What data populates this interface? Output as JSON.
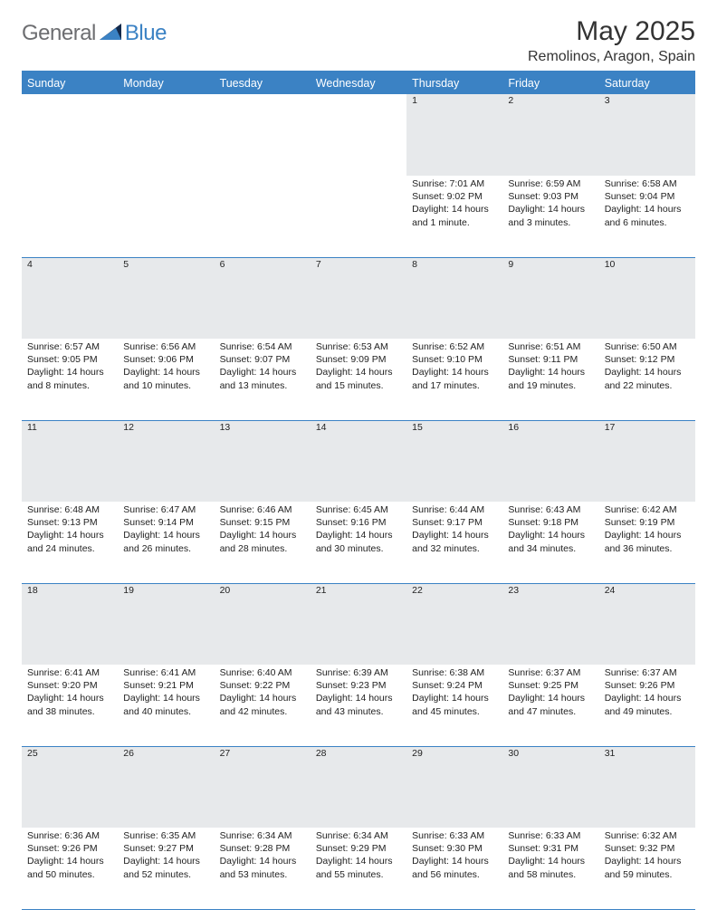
{
  "logo": {
    "general": "General",
    "blue": "Blue"
  },
  "title": "May 2025",
  "location": "Remolinos, Aragon, Spain",
  "colors": {
    "header_bg": "#3b82c4",
    "header_text": "#ffffff",
    "daynum_bg": "#e7e9eb",
    "border": "#3b82c4",
    "logo_gray": "#6d6e71",
    "logo_blue": "#3b82c4",
    "text": "#222222"
  },
  "fonts": {
    "body_family": "Arial",
    "title_size_pt": 30,
    "location_size_pt": 16,
    "header_size_pt": 12.5,
    "cell_size_pt": 10.5
  },
  "days_of_week": [
    "Sunday",
    "Monday",
    "Tuesday",
    "Wednesday",
    "Thursday",
    "Friday",
    "Saturday"
  ],
  "weeks": [
    [
      null,
      null,
      null,
      null,
      {
        "n": "1",
        "sr": "7:01 AM",
        "ss": "9:02 PM",
        "dl": "14 hours and 1 minute."
      },
      {
        "n": "2",
        "sr": "6:59 AM",
        "ss": "9:03 PM",
        "dl": "14 hours and 3 minutes."
      },
      {
        "n": "3",
        "sr": "6:58 AM",
        "ss": "9:04 PM",
        "dl": "14 hours and 6 minutes."
      }
    ],
    [
      {
        "n": "4",
        "sr": "6:57 AM",
        "ss": "9:05 PM",
        "dl": "14 hours and 8 minutes."
      },
      {
        "n": "5",
        "sr": "6:56 AM",
        "ss": "9:06 PM",
        "dl": "14 hours and 10 minutes."
      },
      {
        "n": "6",
        "sr": "6:54 AM",
        "ss": "9:07 PM",
        "dl": "14 hours and 13 minutes."
      },
      {
        "n": "7",
        "sr": "6:53 AM",
        "ss": "9:09 PM",
        "dl": "14 hours and 15 minutes."
      },
      {
        "n": "8",
        "sr": "6:52 AM",
        "ss": "9:10 PM",
        "dl": "14 hours and 17 minutes."
      },
      {
        "n": "9",
        "sr": "6:51 AM",
        "ss": "9:11 PM",
        "dl": "14 hours and 19 minutes."
      },
      {
        "n": "10",
        "sr": "6:50 AM",
        "ss": "9:12 PM",
        "dl": "14 hours and 22 minutes."
      }
    ],
    [
      {
        "n": "11",
        "sr": "6:48 AM",
        "ss": "9:13 PM",
        "dl": "14 hours and 24 minutes."
      },
      {
        "n": "12",
        "sr": "6:47 AM",
        "ss": "9:14 PM",
        "dl": "14 hours and 26 minutes."
      },
      {
        "n": "13",
        "sr": "6:46 AM",
        "ss": "9:15 PM",
        "dl": "14 hours and 28 minutes."
      },
      {
        "n": "14",
        "sr": "6:45 AM",
        "ss": "9:16 PM",
        "dl": "14 hours and 30 minutes."
      },
      {
        "n": "15",
        "sr": "6:44 AM",
        "ss": "9:17 PM",
        "dl": "14 hours and 32 minutes."
      },
      {
        "n": "16",
        "sr": "6:43 AM",
        "ss": "9:18 PM",
        "dl": "14 hours and 34 minutes."
      },
      {
        "n": "17",
        "sr": "6:42 AM",
        "ss": "9:19 PM",
        "dl": "14 hours and 36 minutes."
      }
    ],
    [
      {
        "n": "18",
        "sr": "6:41 AM",
        "ss": "9:20 PM",
        "dl": "14 hours and 38 minutes."
      },
      {
        "n": "19",
        "sr": "6:41 AM",
        "ss": "9:21 PM",
        "dl": "14 hours and 40 minutes."
      },
      {
        "n": "20",
        "sr": "6:40 AM",
        "ss": "9:22 PM",
        "dl": "14 hours and 42 minutes."
      },
      {
        "n": "21",
        "sr": "6:39 AM",
        "ss": "9:23 PM",
        "dl": "14 hours and 43 minutes."
      },
      {
        "n": "22",
        "sr": "6:38 AM",
        "ss": "9:24 PM",
        "dl": "14 hours and 45 minutes."
      },
      {
        "n": "23",
        "sr": "6:37 AM",
        "ss": "9:25 PM",
        "dl": "14 hours and 47 minutes."
      },
      {
        "n": "24",
        "sr": "6:37 AM",
        "ss": "9:26 PM",
        "dl": "14 hours and 49 minutes."
      }
    ],
    [
      {
        "n": "25",
        "sr": "6:36 AM",
        "ss": "9:26 PM",
        "dl": "14 hours and 50 minutes."
      },
      {
        "n": "26",
        "sr": "6:35 AM",
        "ss": "9:27 PM",
        "dl": "14 hours and 52 minutes."
      },
      {
        "n": "27",
        "sr": "6:34 AM",
        "ss": "9:28 PM",
        "dl": "14 hours and 53 minutes."
      },
      {
        "n": "28",
        "sr": "6:34 AM",
        "ss": "9:29 PM",
        "dl": "14 hours and 55 minutes."
      },
      {
        "n": "29",
        "sr": "6:33 AM",
        "ss": "9:30 PM",
        "dl": "14 hours and 56 minutes."
      },
      {
        "n": "30",
        "sr": "6:33 AM",
        "ss": "9:31 PM",
        "dl": "14 hours and 58 minutes."
      },
      {
        "n": "31",
        "sr": "6:32 AM",
        "ss": "9:32 PM",
        "dl": "14 hours and 59 minutes."
      }
    ]
  ],
  "labels": {
    "sunrise": "Sunrise:",
    "sunset": "Sunset:",
    "daylight": "Daylight:"
  }
}
